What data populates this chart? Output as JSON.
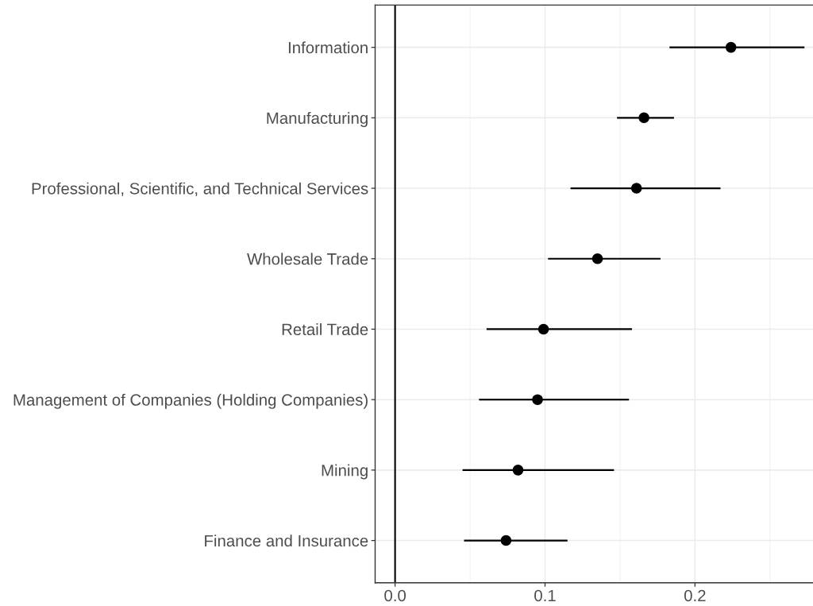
{
  "chart_data": {
    "type": "scatter",
    "orientation": "horizontal",
    "categories": [
      "Information",
      "Manufacturing",
      "Professional, Scientific, and Technical Services",
      "Wholesale Trade",
      "Retail Trade",
      "Management of Companies (Holding Companies)",
      "Mining",
      "Finance and Insurance"
    ],
    "series": [
      {
        "color": "#000000",
        "values": [
          0.224,
          0.166,
          0.161,
          0.135,
          0.099,
          0.095,
          0.082,
          0.074
        ],
        "errors": [
          [
            0.183,
            0.273
          ],
          [
            0.148,
            0.186
          ],
          [
            0.117,
            0.217
          ],
          [
            0.102,
            0.177
          ],
          [
            0.061,
            0.158
          ],
          [
            0.056,
            0.156
          ],
          [
            0.045,
            0.146
          ],
          [
            0.046,
            0.115
          ]
        ]
      }
    ],
    "xlim": [
      -0.0133,
      0.2787
    ],
    "xticks": [
      {
        "value": 0,
        "label": "0.0"
      },
      0.1,
      0.2
    ],
    "ref_lines": [
      {
        "axis": "x",
        "value": 0,
        "color": "#000000"
      }
    ],
    "grid": true,
    "marker": "circle"
  }
}
